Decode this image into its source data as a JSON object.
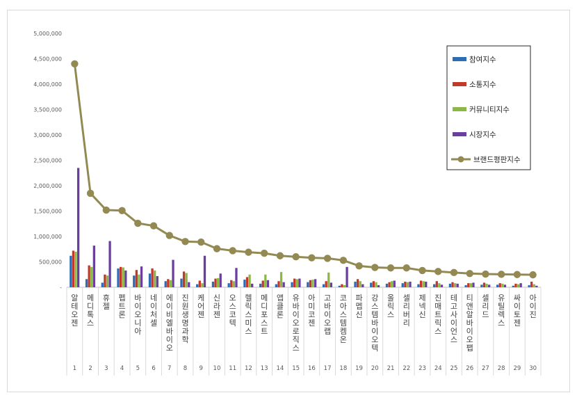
{
  "chart_data": {
    "type": "bar",
    "title": "",
    "xlabel": "",
    "ylabel": "",
    "ylim": [
      0,
      5000000
    ],
    "yticks": [
      "5,000,000",
      "4,500,000",
      "4,000,000",
      "3,500,000",
      "3,000,000",
      "2,500,000",
      "2,000,000",
      "1,500,000",
      "1,000,000",
      "500,000",
      "-"
    ],
    "grid": false,
    "legend_position": "top-right",
    "categories": [
      "알테오젠",
      "메디톡스",
      "휴젤",
      "펩트론",
      "바이오니아",
      "네이처셀",
      "에이비엘바이오",
      "진원생명과학",
      "케어젠",
      "신라젠",
      "오스코텍",
      "헬릭스미스",
      "메디포스트",
      "앱클론",
      "유바이오로직스",
      "아미코젠",
      "고바이오랩",
      "코아스템켐온",
      "파멥신",
      "강스템바이오텍",
      "올릭스",
      "셀리버리",
      "제넥신",
      "진매트릭스",
      "테고사이언스",
      "티앤알바이오팹",
      "셀리드",
      "유틸렉스",
      "싸이토젠",
      "아이진"
    ],
    "ranks": [
      "1",
      "2",
      "3",
      "4",
      "5",
      "6",
      "7",
      "8",
      "9",
      "10",
      "11",
      "12",
      "13",
      "14",
      "15",
      "16",
      "17",
      "18",
      "19",
      "20",
      "21",
      "22",
      "23",
      "24",
      "25",
      "26",
      "27",
      "28",
      "29",
      "30"
    ],
    "series": [
      {
        "name": "참여지수",
        "color": "#2E6DB4",
        "kind": "bar",
        "values": [
          620000,
          160000,
          90000,
          370000,
          230000,
          270000,
          120000,
          170000,
          60000,
          110000,
          80000,
          150000,
          70000,
          60000,
          100000,
          100000,
          60000,
          30000,
          110000,
          90000,
          70000,
          80000,
          60000,
          60000,
          70000,
          40000,
          50000,
          50000,
          30000,
          40000
        ]
      },
      {
        "name": "소통지수",
        "color": "#C0392B",
        "kind": "bar",
        "values": [
          720000,
          430000,
          250000,
          400000,
          340000,
          370000,
          160000,
          310000,
          130000,
          170000,
          140000,
          200000,
          130000,
          120000,
          170000,
          140000,
          120000,
          60000,
          160000,
          120000,
          100000,
          110000,
          130000,
          120000,
          100000,
          80000,
          90000,
          80000,
          70000,
          110000
        ]
      },
      {
        "name": "커뮤니티지수",
        "color": "#8DB847",
        "kind": "bar",
        "values": [
          700000,
          400000,
          230000,
          390000,
          250000,
          330000,
          140000,
          280000,
          80000,
          180000,
          120000,
          250000,
          250000,
          300000,
          160000,
          150000,
          290000,
          40000,
          120000,
          100000,
          120000,
          100000,
          120000,
          80000,
          80000,
          80000,
          70000,
          70000,
          60000,
          60000
        ]
      },
      {
        "name": "시장지수",
        "color": "#6A3FA0",
        "kind": "bar",
        "values": [
          2350000,
          820000,
          910000,
          330000,
          410000,
          220000,
          540000,
          100000,
          620000,
          270000,
          380000,
          70000,
          140000,
          100000,
          170000,
          160000,
          90000,
          400000,
          60000,
          40000,
          130000,
          110000,
          110000,
          50000,
          70000,
          90000,
          50000,
          50000,
          80000,
          30000
        ]
      },
      {
        "name": "브랜드평판지수",
        "color": "#938953",
        "kind": "line",
        "values": [
          4400000,
          1850000,
          1520000,
          1510000,
          1260000,
          1210000,
          1020000,
          900000,
          890000,
          760000,
          720000,
          690000,
          670000,
          620000,
          600000,
          580000,
          570000,
          530000,
          420000,
          390000,
          380000,
          380000,
          330000,
          310000,
          290000,
          270000,
          260000,
          255000,
          250000,
          245000
        ]
      }
    ]
  }
}
